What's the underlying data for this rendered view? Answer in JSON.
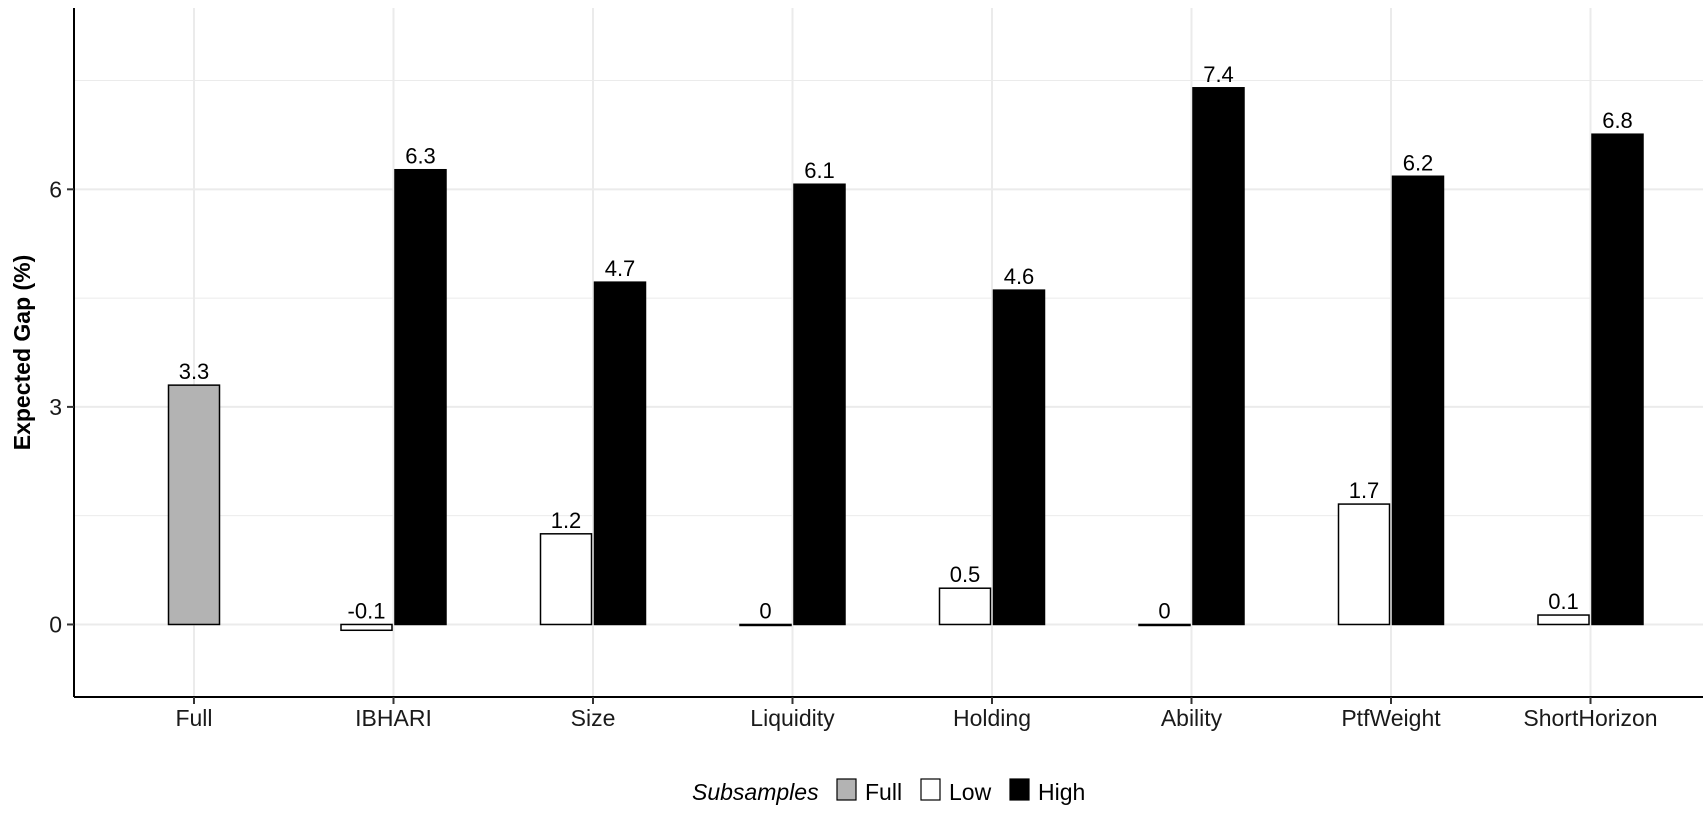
{
  "chart_data": {
    "type": "bar",
    "ylabel": "Expected Gap (%)",
    "xlabel": "",
    "ylim": [
      -1.0,
      8.5
    ],
    "yticks": [
      0,
      3,
      6
    ],
    "grid": true,
    "legend_position": "bottom",
    "legend_title": "Subsamples",
    "categories": [
      "Full",
      "IBHARI",
      "Size",
      "Liquidity",
      "Holding",
      "Ability",
      "PtfWeight",
      "ShortHorizon"
    ],
    "series": [
      {
        "name": "Full",
        "color": "#b3b3b3",
        "values": [
          3.3,
          null,
          null,
          null,
          null,
          null,
          null,
          null
        ],
        "labels": [
          "3.3",
          null,
          null,
          null,
          null,
          null,
          null,
          null
        ]
      },
      {
        "name": "Low",
        "color": "#ffffff",
        "values": [
          null,
          -0.08,
          1.25,
          0.0,
          0.5,
          0.0,
          1.66,
          0.13
        ],
        "labels": [
          null,
          "-0.1",
          "1.2",
          "0",
          "0.5",
          "0",
          "1.7",
          "0.1"
        ]
      },
      {
        "name": "High",
        "color": "#000000",
        "values": [
          null,
          6.27,
          4.72,
          6.07,
          4.61,
          7.4,
          6.18,
          6.76
        ],
        "labels": [
          null,
          "6.3",
          "4.7",
          "6.1",
          "4.6",
          "7.4",
          "6.2",
          "6.8"
        ]
      }
    ]
  }
}
